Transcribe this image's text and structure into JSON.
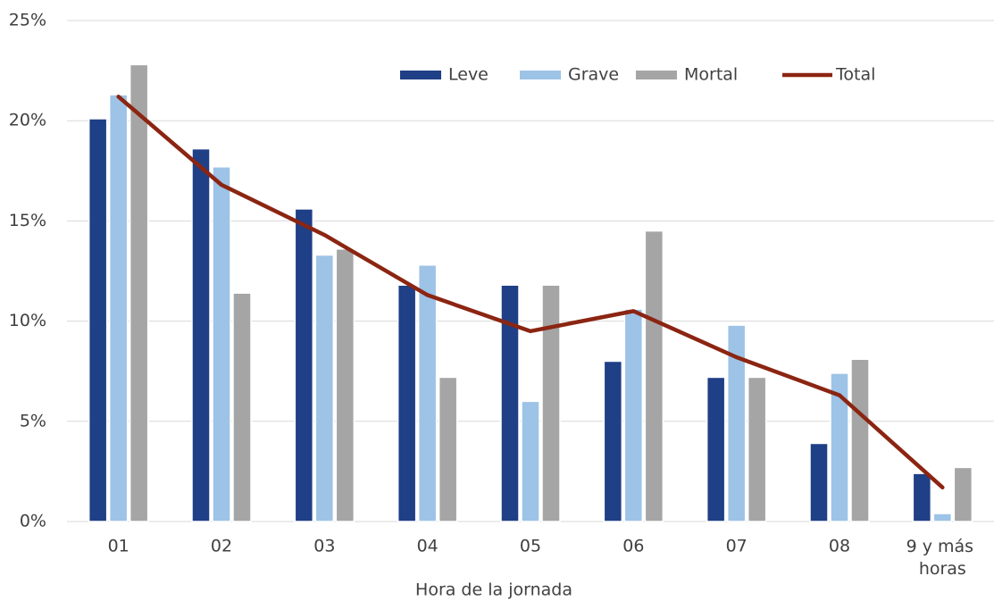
{
  "chart_data": {
    "type": "bar",
    "x_label": "Hora de la jornada",
    "categories": [
      "01",
      "02",
      "03",
      "04",
      "05",
      "06",
      "07",
      "08",
      "9 y más horas"
    ],
    "series": [
      {
        "name": "Leve",
        "color": "#1f3f86",
        "values": [
          20.1,
          18.6,
          15.6,
          11.8,
          11.8,
          8.0,
          7.2,
          3.9,
          2.4
        ]
      },
      {
        "name": "Grave",
        "color": "#9dc3e6",
        "values": [
          21.3,
          17.7,
          13.3,
          12.8,
          6.0,
          10.6,
          9.8,
          7.4,
          0.4
        ]
      },
      {
        "name": "Mortal",
        "color": "#a5a5a5",
        "values": [
          22.8,
          11.4,
          13.6,
          7.2,
          11.8,
          14.5,
          7.2,
          8.1,
          2.7
        ]
      },
      {
        "name": "Total",
        "color": "#8b2512",
        "type": "line",
        "values": [
          21.2,
          16.8,
          14.3,
          11.3,
          9.5,
          10.5,
          8.2,
          6.3,
          1.7
        ]
      }
    ],
    "ylim": [
      0,
      25
    ],
    "yticks": [
      {
        "value": 0,
        "label": "0%"
      },
      {
        "value": 5,
        "label": "5%"
      },
      {
        "value": 10,
        "label": "10%"
      },
      {
        "value": 15,
        "label": "15%"
      },
      {
        "value": 20,
        "label": "20%"
      },
      {
        "value": 25,
        "label": "25%"
      }
    ],
    "grid": true,
    "legend": "top"
  }
}
